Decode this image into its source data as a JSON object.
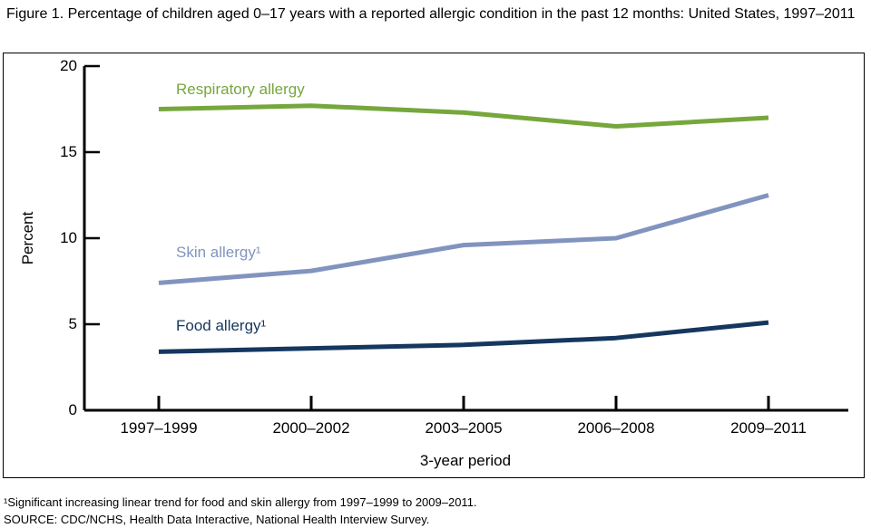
{
  "title": "Figure 1. Percentage of children aged 0–17 years with a reported allergic condition in the past 12 months: United States, 1997–2011",
  "footnotes": [
    "¹Significant increasing linear trend for food and skin allergy from 1997–1999 to 2009–2011.",
    "SOURCE: CDC/NCHS, Health Data Interactive, National Health Interview Survey."
  ],
  "chart_data": {
    "type": "line",
    "categories": [
      "1997–1999",
      "2000–2002",
      "2003–2005",
      "2006–2008",
      "2009–2011"
    ],
    "series": [
      {
        "name": "Respiratory allergy",
        "label": "Respiratory allergy",
        "color": "#76A73C",
        "values": [
          17.5,
          17.7,
          17.3,
          16.5,
          17.0
        ]
      },
      {
        "name": "Skin allergy",
        "label": "Skin allergy¹",
        "color": "#8194BF",
        "values": [
          7.4,
          8.1,
          9.6,
          10.0,
          12.5
        ]
      },
      {
        "name": "Food allergy",
        "label": "Food allergy¹",
        "color": "#15375F",
        "values": [
          3.4,
          3.6,
          3.8,
          4.2,
          5.1
        ]
      }
    ],
    "xlabel": "3-year period",
    "ylabel": "Percent",
    "ylim": [
      0,
      20
    ],
    "yticks": [
      0,
      5,
      10,
      15,
      20
    ],
    "grid": false,
    "legend_position": "inline-labels",
    "axis_color": "#000000"
  }
}
